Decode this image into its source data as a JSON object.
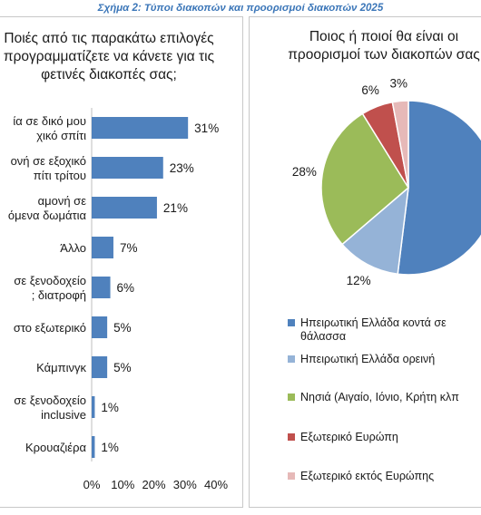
{
  "caption": "Σχήμα 2: Τύποι διακοπών και προορισμοί διακοπών 2025",
  "chart_data": [
    {
      "type": "bar",
      "orientation": "horizontal",
      "title": "Ποιές από τις παρακάτω επιλογές\nπρογραμματίζετε να κάνετε για τις\nφετινές διακοπές σας;",
      "categories": [
        [
          "ία σε δικό μου",
          "χικό σπίτι"
        ],
        [
          "ονή σε εξοχικό",
          "πίτι τρίτου"
        ],
        [
          "αμονή σε",
          "όμενα δωμάτια"
        ],
        [
          "Άλλο"
        ],
        [
          "σε ξενοδοχείο",
          "; διατροφή"
        ],
        [
          "στο εξωτερικό"
        ],
        [
          "Κάμπινγκ"
        ],
        [
          "σε ξενοδοχείο",
          "inclusive"
        ],
        [
          "Κρουαζιέρα"
        ]
      ],
      "values": [
        31,
        23,
        21,
        7,
        6,
        5,
        5,
        1,
        1
      ],
      "data_labels": [
        "31%",
        "23%",
        "21%",
        "7%",
        "6%",
        "5%",
        "5%",
        "1%",
        "1%"
      ],
      "xlim": [
        0,
        40
      ],
      "xticks": [
        "0%",
        "10%",
        "20%",
        "30%",
        "40%"
      ],
      "bar_color": "#4f81bd",
      "grid": false
    },
    {
      "type": "pie",
      "title": "Ποιος ή ποιοί θα είναι οι\nπροορισμοί των διακοπών σας",
      "slices": [
        {
          "name": "Ηπειρωτική Ελλάδα κοντά σε θάλασσα",
          "legend_lines": [
            "Ηπειρωτική Ελλάδα κοντά σε",
            "θάλασσα"
          ],
          "value": 53,
          "label": "",
          "color": "#4f81bd"
        },
        {
          "name": "Ηπειρωτική Ελλάδα ορεινή",
          "legend_lines": [
            "Ηπειρωτική Ελλάδα ορεινή"
          ],
          "value": 12,
          "label": "12%",
          "color": "#95b3d7"
        },
        {
          "name": "Νησιά (Αιγαίο, Ιόνιο, Κρήτη κλπ",
          "legend_lines": [
            "Νησιά (Αιγαίο, Ιόνιο, Κρήτη κλπ"
          ],
          "value": 28,
          "label": "28%",
          "color": "#9bbb59"
        },
        {
          "name": "Εξωτερικό Ευρώπη",
          "legend_lines": [
            "Εξωτερικό Ευρώπη"
          ],
          "value": 6,
          "label": "6%",
          "color": "#c0504d"
        },
        {
          "name": "Εξωτερικό εκτός Ευρώπης",
          "legend_lines": [
            "Εξωτερικό εκτός Ευρώπης"
          ],
          "value": 3,
          "label": "3%",
          "color": "#e6b9b8"
        }
      ],
      "legend_position": "bottom"
    }
  ]
}
